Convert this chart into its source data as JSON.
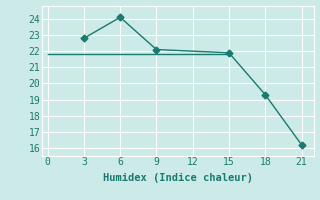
{
  "line1_x": [
    3,
    6,
    9,
    15,
    18,
    21
  ],
  "line1_y": [
    22.8,
    24.1,
    22.1,
    21.9,
    19.3,
    16.2
  ],
  "line2_x": [
    0,
    15
  ],
  "line2_y": [
    21.8,
    21.8
  ],
  "color": "#1a7a6e",
  "bg_color": "#cceae7",
  "grid_color": "#ffffff",
  "xlabel": "Humidex (Indice chaleur)",
  "xlim": [
    -0.5,
    22
  ],
  "ylim": [
    15.5,
    24.8
  ],
  "xticks": [
    0,
    3,
    6,
    9,
    12,
    15,
    18,
    21
  ],
  "yticks": [
    16,
    17,
    18,
    19,
    20,
    21,
    22,
    23,
    24
  ],
  "font_size": 7.5,
  "marker": "D",
  "marker_size": 3.5
}
